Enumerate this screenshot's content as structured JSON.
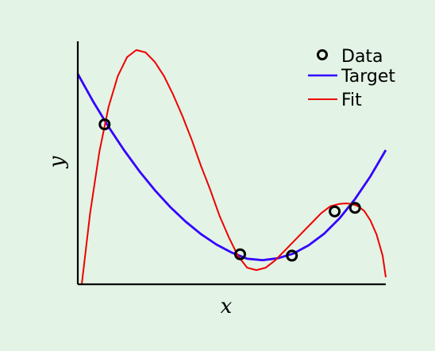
{
  "chart_data": {
    "type": "line",
    "title": "",
    "xlabel": "x",
    "ylabel": "y",
    "xlim": [
      0,
      1
    ],
    "ylim": [
      0,
      1
    ],
    "grid": false,
    "legend_placement": "top-right",
    "colors": {
      "data": "#000000",
      "target": "#3300ff",
      "fit": "#ee0000",
      "background": "#e3f3e5"
    },
    "series": [
      {
        "name": "Data",
        "kind": "scatter",
        "marker": "open-circle",
        "x": [
          0.087,
          0.527,
          0.695,
          0.834,
          0.9
        ],
        "y": [
          0.676,
          0.127,
          0.121,
          0.308,
          0.323
        ]
      },
      {
        "name": "Target",
        "kind": "line",
        "color": "#3300ff",
        "x": [
          0,
          0.05,
          0.1,
          0.15,
          0.2,
          0.25,
          0.3,
          0.35,
          0.4,
          0.45,
          0.5,
          0.55,
          0.6,
          0.65,
          0.7,
          0.75,
          0.8,
          0.85,
          0.9,
          0.95,
          1.0
        ],
        "y": [
          0.889,
          0.772,
          0.665,
          0.567,
          0.478,
          0.398,
          0.327,
          0.265,
          0.212,
          0.168,
          0.134,
          0.108,
          0.102,
          0.11,
          0.13,
          0.165,
          0.214,
          0.279,
          0.36,
          0.456,
          0.567
        ]
      },
      {
        "name": "Fit",
        "kind": "line",
        "color": "#ee0000",
        "x": [
          0.013,
          0.04,
          0.07,
          0.1,
          0.13,
          0.16,
          0.19,
          0.22,
          0.25,
          0.28,
          0.31,
          0.34,
          0.37,
          0.4,
          0.43,
          0.46,
          0.49,
          0.52,
          0.55,
          0.58,
          0.61,
          0.64,
          0.67,
          0.7,
          0.73,
          0.76,
          0.79,
          0.82,
          0.85,
          0.87,
          0.89,
          0.91,
          0.93,
          0.95,
          0.97,
          0.99,
          1.0
        ],
        "y": [
          0.0,
          0.3,
          0.56,
          0.75,
          0.88,
          0.96,
          0.99,
          0.98,
          0.94,
          0.88,
          0.8,
          0.71,
          0.61,
          0.5,
          0.4,
          0.29,
          0.2,
          0.12,
          0.07,
          0.06,
          0.07,
          0.1,
          0.14,
          0.18,
          0.22,
          0.26,
          0.3,
          0.33,
          0.34,
          0.342,
          0.34,
          0.33,
          0.31,
          0.27,
          0.21,
          0.12,
          0.03
        ]
      }
    ]
  }
}
